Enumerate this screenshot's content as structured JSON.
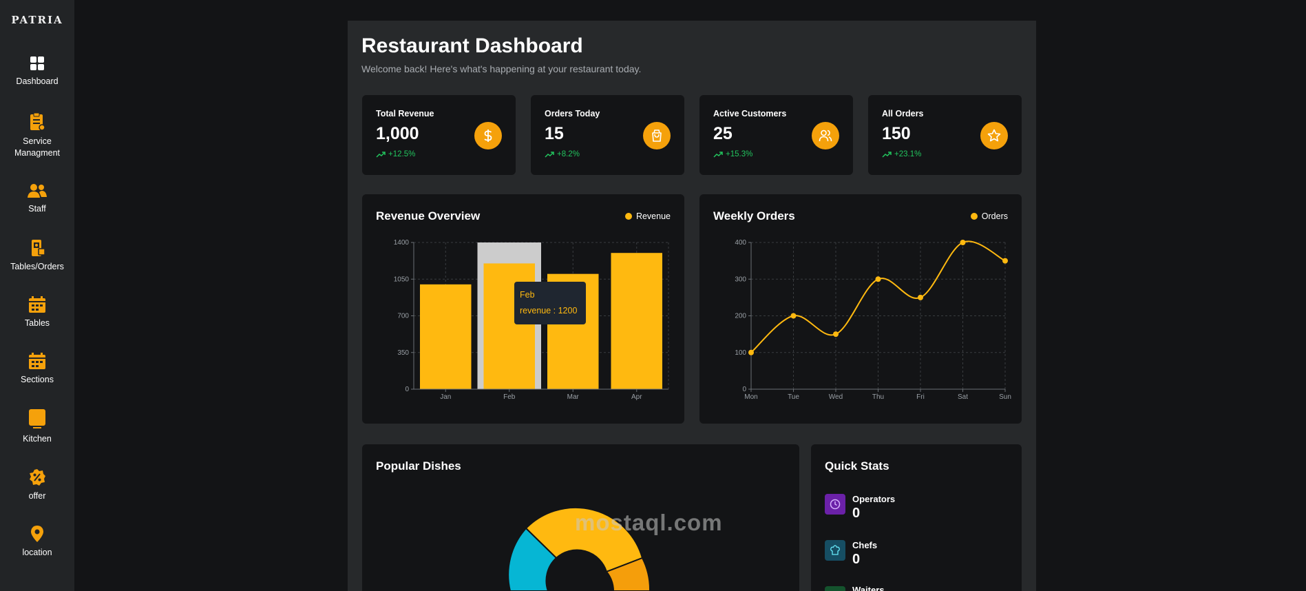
{
  "brand": "PATRIA",
  "sidebar": {
    "items": [
      {
        "label": "Dashboard",
        "icon": "dashboard-grid-icon"
      },
      {
        "label": "Service\nManagment",
        "icon": "clipboard-icon"
      },
      {
        "label": "Staff",
        "icon": "users-icon"
      },
      {
        "label": "Tables/Orders",
        "icon": "phone-order-icon"
      },
      {
        "label": "Tables",
        "icon": "calendar-icon"
      },
      {
        "label": "Sections",
        "icon": "calendar-icon"
      },
      {
        "label": "Kitchen",
        "icon": "kitchen-square-icon"
      },
      {
        "label": "offer",
        "icon": "percent-badge-icon"
      },
      {
        "label": "location",
        "icon": "map-pin-icon"
      }
    ]
  },
  "header": {
    "title": "Restaurant Dashboard",
    "subtitle": "Welcome back! Here's what's happening at your restaurant today."
  },
  "stats": [
    {
      "label": "Total Revenue",
      "value": "1,000",
      "change": "+12.5%",
      "icon": "dollar-icon"
    },
    {
      "label": "Orders Today",
      "value": "15",
      "change": "+8.2%",
      "icon": "shopping-bag-icon"
    },
    {
      "label": "Active Customers",
      "value": "25",
      "change": "+15.3%",
      "icon": "users-icon"
    },
    {
      "label": "All Orders",
      "value": "150",
      "change": "+23.1%",
      "icon": "star-icon"
    }
  ],
  "revenue_chart": {
    "title": "Revenue Overview",
    "legend": "Revenue",
    "tooltip": {
      "month": "Feb",
      "text": "revenue : 1200"
    }
  },
  "orders_chart": {
    "title": "Weekly Orders",
    "legend": "Orders"
  },
  "chart_data": [
    {
      "type": "bar",
      "title": "Revenue Overview",
      "categories": [
        "Jan",
        "Feb",
        "Mar",
        "Apr"
      ],
      "series": [
        {
          "name": "Revenue",
          "values": [
            1000,
            1200,
            1100,
            1300
          ]
        }
      ],
      "yticks": [
        0,
        350,
        700,
        1050,
        1400
      ],
      "ylim": [
        0,
        1400
      ],
      "grid": true,
      "legend": "top-right",
      "color": "#ffb910",
      "highlight_category": "Feb"
    },
    {
      "type": "line",
      "title": "Weekly Orders",
      "categories": [
        "Mon",
        "Tue",
        "Wed",
        "Thu",
        "Fri",
        "Sat",
        "Sun"
      ],
      "series": [
        {
          "name": "Orders",
          "values": [
            100,
            200,
            150,
            300,
            250,
            400,
            350
          ]
        }
      ],
      "yticks": [
        0,
        100,
        200,
        300,
        400
      ],
      "ylim": [
        0,
        400
      ],
      "grid": true,
      "legend": "top-right",
      "color": "#ffb910"
    }
  ],
  "popular_dishes": {
    "title": "Popular Dishes",
    "colors": [
      "#ffb910",
      "#06b6d4",
      "#f59e0b"
    ]
  },
  "quick_stats": {
    "title": "Quick Stats",
    "items": [
      {
        "label": "Operators",
        "value": "0",
        "icon": "clock-icon",
        "color": "#6b21a8"
      },
      {
        "label": "Chefs",
        "value": "0",
        "icon": "chef-hat-icon",
        "color": "#164e63"
      },
      {
        "label": "Waiters",
        "value": "",
        "icon": "waiter-icon",
        "color": "#14532d"
      }
    ]
  },
  "watermark": "mostaql.com",
  "colors": {
    "accent": "#ffb910",
    "positive": "#22c55e",
    "bg": "#131416",
    "panel": "#27292b"
  }
}
